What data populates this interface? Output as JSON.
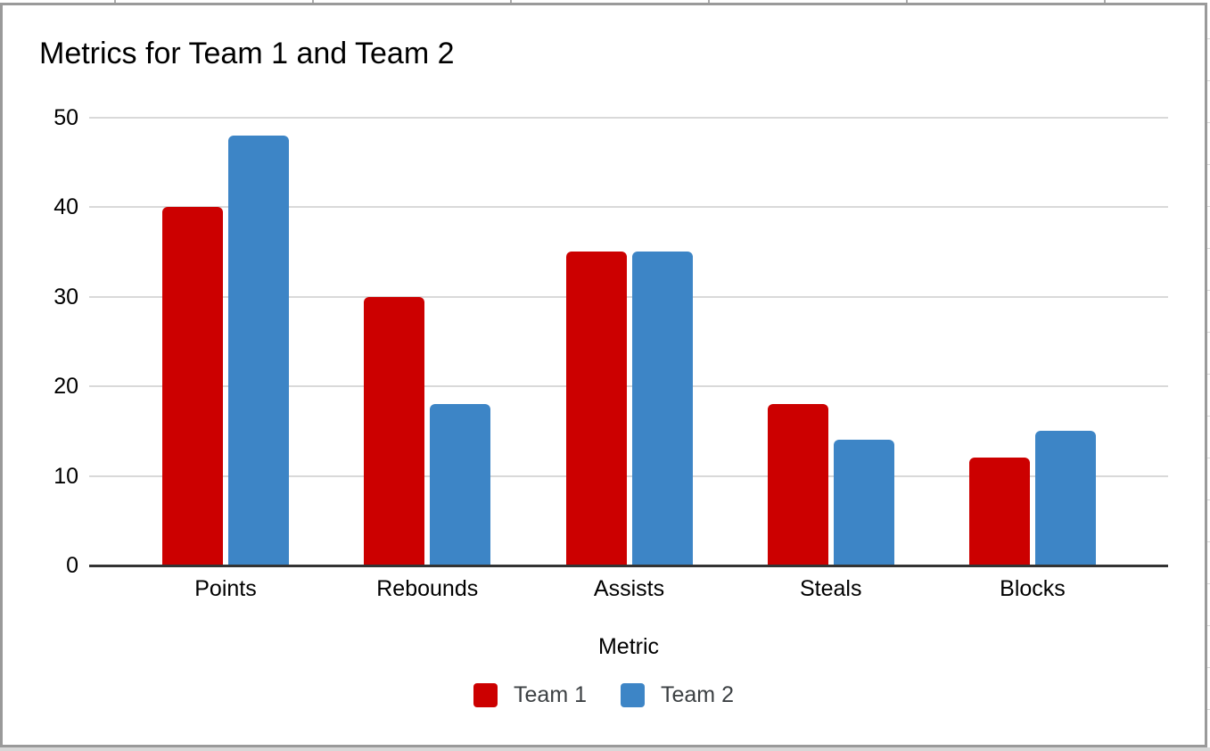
{
  "chart_data": {
    "type": "bar",
    "title": "Metrics for Team 1 and Team 2",
    "xlabel": "Metric",
    "ylabel": "",
    "categories": [
      "Points",
      "Rebounds",
      "Assists",
      "Steals",
      "Blocks"
    ],
    "series": [
      {
        "name": "Team 1",
        "color": "#cc0000",
        "values": [
          40,
          30,
          35,
          18,
          12
        ]
      },
      {
        "name": "Team 2",
        "color": "#3d85c6",
        "values": [
          48,
          18,
          35,
          14,
          15
        ]
      }
    ],
    "ylim": [
      0,
      50
    ],
    "yticks": [
      0,
      10,
      20,
      30,
      40,
      50
    ],
    "grid": true,
    "legend_position": "bottom"
  },
  "colors": {
    "gridline": "#d9d9d9",
    "axis_line": "#333333",
    "chart_border": "#9a9a9a",
    "title_text": "#000000",
    "tick_text": "#000000",
    "legend_text": "#3c4043"
  }
}
